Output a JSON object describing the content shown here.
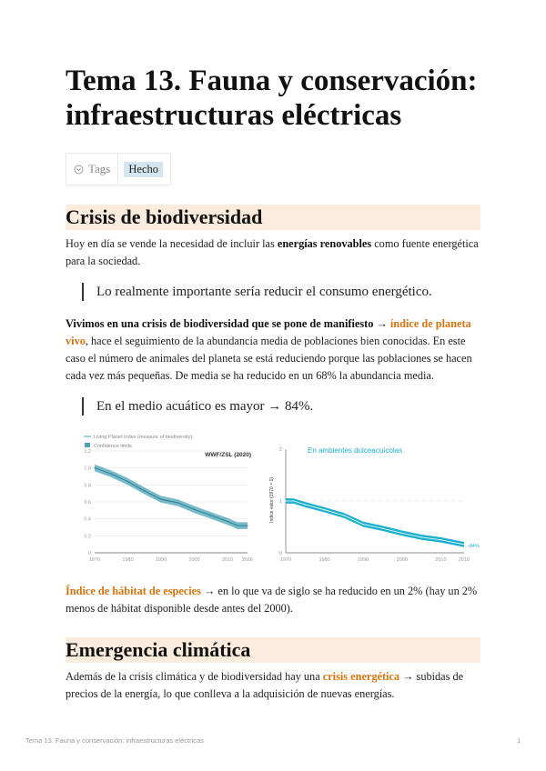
{
  "title": "Tema 13. Fauna y conservación: infraestructuras eléctricas",
  "tags": {
    "label": "Tags",
    "value": "Hecho",
    "value_color": "#d3e5ef"
  },
  "sections": [
    {
      "heading": "Crisis de biodiversidad",
      "p1": {
        "a": "Hoy en día se vende la necesidad de incluir las ",
        "bold": "energías renovables",
        "b": " como fuente energética para la sociedad."
      },
      "quote1": "Lo realmente importante sería reducir el consumo energético.",
      "p2": {
        "bold": "Vivimos en una crisis de biodiversidad que se pone de manifiesto →",
        "highlight": "índice de planeta vivo",
        "rest": ", hace el seguimiento de la abundancia media de poblaciones bien conocidas. En este caso el número de animales del planeta se está reduciendo porque las poblaciones se hacen cada vez más pequeñas. De media se ha reducido en un 68% la abundancia media."
      },
      "quote2": "En el medio acuático es mayor → 84%.",
      "p3": {
        "highlight": "Índice de hábitat de especies",
        "rest": " → en lo que va de siglo se ha reducido en un 2% (hay un 2% menos de hábitat disponible desde antes del 2000)."
      }
    },
    {
      "heading": "Emergencia climática",
      "p1": {
        "a": "Además de la crisis climática y de biodiversidad hay una ",
        "highlight": "crisis energética",
        "b": " → subidas de precios de la energía, lo que conlleva a la adquisición de nuevas energías."
      }
    }
  ],
  "accent_color": "#d9730d",
  "heading_bg": "#fbecdd",
  "chart_data": [
    {
      "type": "area",
      "legend": [
        "Living Planet Index (measure of biodiversity)",
        "Confidence limits"
      ],
      "source": "WWF/ZSL (2020)",
      "x": [
        1970,
        1975,
        1980,
        1985,
        1990,
        1995,
        2000,
        2005,
        2010,
        2013,
        2016
      ],
      "values": [
        1.0,
        0.93,
        0.84,
        0.73,
        0.63,
        0.59,
        0.51,
        0.44,
        0.37,
        0.32,
        0.32
      ],
      "band": 0.04,
      "ylim": [
        0,
        1.2
      ],
      "yticks": [
        "0",
        "0.2",
        "0.4",
        "0.6",
        "0.8",
        "1.0",
        "1.2"
      ],
      "xticks": [
        "1970",
        "1980",
        "1990",
        "2000",
        "2010",
        "2016"
      ],
      "color": "#4aa3b8"
    },
    {
      "type": "line",
      "title": "En ambientes dulceacuícolas",
      "ylabel": "Índice valor (1970 = 1)",
      "x": [
        1970,
        1972,
        1975,
        1980,
        1985,
        1990,
        1995,
        2000,
        2005,
        2010,
        2016
      ],
      "values": [
        1.0,
        1.0,
        0.93,
        0.83,
        0.72,
        0.55,
        0.47,
        0.38,
        0.3,
        0.25,
        0.16
      ],
      "band": 0.05,
      "ylim": [
        0,
        2
      ],
      "yticks": [
        "0",
        "1",
        "2"
      ],
      "xticks": [
        "1970",
        "1980",
        "1990",
        "2000",
        "2010",
        "2016"
      ],
      "end_label": "-84%",
      "color": "#1bb0cc"
    }
  ],
  "footer": {
    "title": "Tema 13. Fauna y conservación: infraestructuras eléctricas",
    "page": "1"
  }
}
